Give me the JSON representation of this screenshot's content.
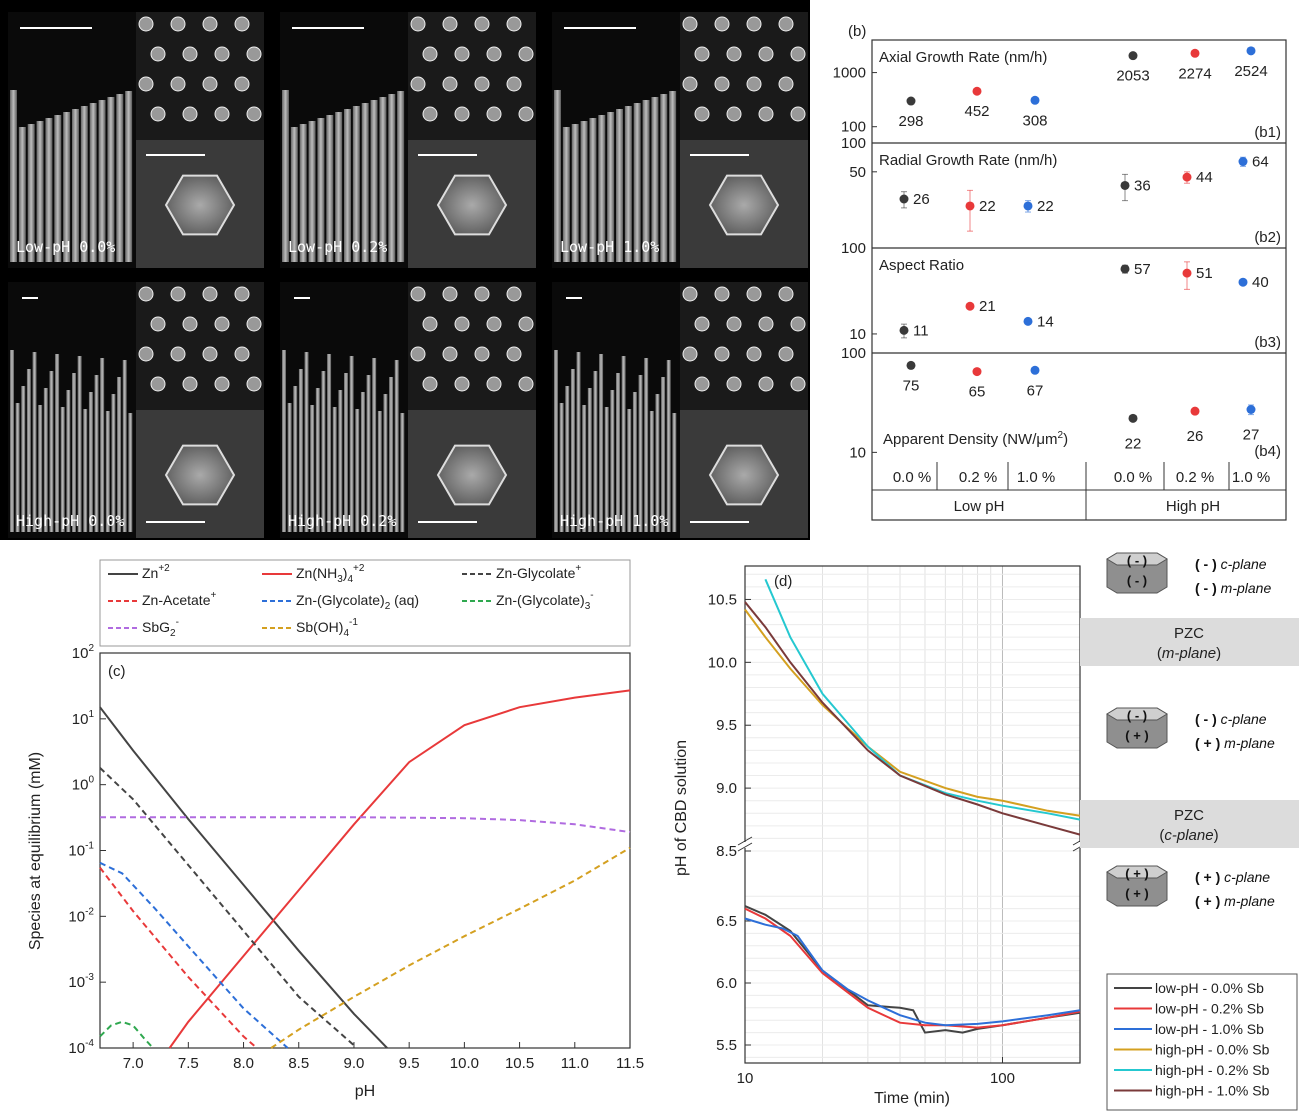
{
  "sem": {
    "panels": [
      "Low-pH 0.0%",
      "Low-pH 0.2%",
      "Low-pH 1.0%",
      "High-pH 0.0%",
      "High-pH 0.2%",
      "High-pH 1.0%"
    ]
  },
  "chart_data": [
    {
      "panel": "b",
      "type": "scatter",
      "panel_label": "(b)",
      "categories": [
        "0.0 %",
        "0.2 %",
        "1.0 %",
        "0.0 %",
        "0.2 %",
        "1.0 %"
      ],
      "groups": [
        "Low pH",
        "High pH"
      ],
      "series_colors": [
        "#3a3a3a",
        "#e8393a",
        "#2d6fd8",
        "#3a3a3a",
        "#e8393a",
        "#2d6fd8"
      ],
      "log_scale": true,
      "subplots": [
        {
          "title": "Axial Growth Rate (nm/h)",
          "tag": "(b1)",
          "ylim": [
            50,
            4000
          ],
          "ticks": [
            100,
            1000
          ],
          "values": [
            298,
            452,
            308,
            2053,
            2274,
            2524
          ],
          "labels": [
            "298",
            "452",
            "308",
            "2053",
            "2274",
            "2524"
          ],
          "errors": [
            0,
            0,
            0,
            0,
            0,
            0
          ]
        },
        {
          "title": "Radial Growth Rate (nm/h)",
          "tag": "(b2)",
          "ylim": [
            8,
            100
          ],
          "ticks": [
            50,
            100
          ],
          "values": [
            26,
            22,
            22,
            36,
            44,
            64
          ],
          "labels": [
            "26",
            "22",
            "22",
            "36",
            "44",
            "64"
          ],
          "errors": [
            5,
            10,
            3,
            11,
            6,
            7
          ]
        },
        {
          "title": "Aspect Ratio",
          "tag": "(b3)",
          "ylim": [
            6,
            100
          ],
          "ticks": [
            10,
            100
          ],
          "values": [
            11,
            21,
            14,
            57,
            51,
            40
          ],
          "labels": [
            "11",
            "21",
            "14",
            "57",
            "51",
            "40"
          ],
          "errors": [
            2,
            0,
            0,
            6,
            18,
            0
          ]
        },
        {
          "title": "Apparent Density (NW/μm²)",
          "tag": "(b4)",
          "ylim": [
            8,
            100
          ],
          "ticks": [
            10,
            100
          ],
          "values": [
            75,
            65,
            67,
            22,
            26,
            27
          ],
          "labels": [
            "75",
            "65",
            "67",
            "22",
            "26",
            "27"
          ],
          "errors": [
            0,
            0,
            0,
            0,
            0,
            3
          ]
        }
      ]
    },
    {
      "panel": "c",
      "type": "line",
      "panel_label": "(c)",
      "xlabel": "pH",
      "ylabel": "Species at equilibrium (mM)",
      "xlim": [
        6.7,
        11.5
      ],
      "ylim": [
        0.0001,
        100
      ],
      "y_log": true,
      "x_ticks": [
        "7.0",
        "7.5",
        "8.0",
        "8.5",
        "9.0",
        "9.5",
        "10.0",
        "10.5",
        "11.0",
        "11.5"
      ],
      "y_ticks": [
        "10-4",
        "10-3",
        "10-2",
        "10-1",
        "100",
        "101",
        "102"
      ],
      "legend": [
        {
          "name": "Zn+2",
          "base": "Zn",
          "sup": "+2",
          "color": "#444444",
          "dash": false
        },
        {
          "name": "Zn(NH3)4+2",
          "base": "Zn(NH",
          "sub1": "3",
          "mid": ")",
          "sub2": "4",
          "sup": "+2",
          "color": "#e8393a",
          "dash": false
        },
        {
          "name": "Zn-Glycolate+",
          "base": "Zn-Glycolate",
          "sup": "+",
          "color": "#444444",
          "dash": true
        },
        {
          "name": "Zn-Acetate+",
          "base": "Zn-Acetate",
          "sup": "+",
          "color": "#e8393a",
          "dash": true
        },
        {
          "name": "Zn-(Glycolate)2 (aq)",
          "base": "Zn-(Glycolate)",
          "sub1": "2",
          "mid": " (aq)",
          "color": "#2d6fd8",
          "dash": true
        },
        {
          "name": "Zn-(Glycolate)3-",
          "base": "Zn-(Glycolate)",
          "sub1": "3",
          "sup": "-",
          "color": "#2fa84f",
          "dash": true
        },
        {
          "name": "SbG2-",
          "base": "SbG",
          "sub1": "2",
          "sup": "-",
          "color": "#b06be0",
          "dash": true
        },
        {
          "name": "Sb(OH)4-1",
          "base": "Sb(OH)",
          "sub1": "4",
          "sup": "-1",
          "color": "#d4a020",
          "dash": true
        }
      ],
      "series": [
        {
          "name": "Zn+2",
          "x": [
            6.7,
            7.0,
            7.5,
            8.0,
            8.5,
            9.0,
            9.3
          ],
          "y": [
            15,
            3.3,
            0.3,
            0.03,
            0.003,
            0.00033,
            0.0001
          ]
        },
        {
          "name": "Zn(NH3)4+2",
          "x": [
            7.33,
            7.5,
            8.0,
            8.5,
            9.0,
            9.5,
            10.0,
            10.5,
            11.0,
            11.5
          ],
          "y": [
            0.0001,
            0.00025,
            0.0025,
            0.025,
            0.25,
            2.2,
            8,
            15,
            21,
            27
          ]
        },
        {
          "name": "Zn-Glycolate+",
          "x": [
            6.7,
            7.0,
            7.5,
            8.0,
            8.5,
            9.0,
            9.0
          ],
          "y": [
            1.8,
            0.6,
            0.06,
            0.006,
            0.0006,
            0.00011,
            0.0001
          ]
        },
        {
          "name": "Zn-Acetate+",
          "x": [
            6.7,
            7.0,
            7.5,
            8.0,
            8.12
          ],
          "y": [
            0.055,
            0.012,
            0.0012,
            0.00015,
            0.0001
          ]
        },
        {
          "name": "Zn-(Glycolate)2 (aq)",
          "x": [
            6.7,
            6.9,
            7.2,
            7.5,
            8.0,
            8.4
          ],
          "y": [
            0.065,
            0.045,
            0.013,
            0.0035,
            0.0004,
            0.0001
          ]
        },
        {
          "name": "Zn-(Glycolate)3-",
          "x": [
            6.7,
            6.8,
            6.9,
            7.0,
            7.1,
            7.18
          ],
          "y": [
            0.00015,
            0.00022,
            0.00025,
            0.00022,
            0.00014,
            0.0001
          ]
        },
        {
          "name": "SbG2-",
          "x": [
            6.7,
            8.0,
            9.0,
            10.0,
            10.5,
            11.0,
            11.5
          ],
          "y": [
            0.32,
            0.32,
            0.32,
            0.31,
            0.29,
            0.25,
            0.19
          ]
        },
        {
          "name": "Sb(OH)4-1",
          "x": [
            8.25,
            8.5,
            9.0,
            9.5,
            10.0,
            10.5,
            11.0,
            11.5
          ],
          "y": [
            0.0001,
            0.00019,
            0.0006,
            0.0018,
            0.005,
            0.013,
            0.035,
            0.11
          ]
        }
      ]
    },
    {
      "panel": "d",
      "type": "line",
      "panel_label": "(d)",
      "xlabel": "Time (min)",
      "ylabel": "pH of CBD solution",
      "x_log": true,
      "xlim": [
        10,
        200
      ],
      "x_ticks": [
        "10",
        "100"
      ],
      "y_ticks_upper": [
        "8.5",
        "9.0",
        "9.5",
        "10.0",
        "10.5"
      ],
      "y_ticks_lower": [
        "5.5",
        "6.0",
        "6.5"
      ],
      "upper_ylim": [
        8.5,
        10.75
      ],
      "lower_ylim": [
        5.4,
        6.75
      ],
      "series": [
        {
          "name": "low-pH - 0.0% Sb",
          "color": "#444444",
          "x": [
            10,
            12,
            15,
            20,
            30,
            40,
            45,
            50,
            60,
            70,
            80,
            100,
            150,
            200
          ],
          "y": [
            6.62,
            6.55,
            6.42,
            6.1,
            5.82,
            5.8,
            5.78,
            5.6,
            5.62,
            5.6,
            5.63,
            5.66,
            5.72,
            5.76
          ]
        },
        {
          "name": "low-pH - 0.2% Sb",
          "color": "#e8393a",
          "x": [
            10,
            12,
            15,
            20,
            30,
            40,
            50,
            60,
            80,
            100,
            150,
            200
          ],
          "y": [
            6.6,
            6.52,
            6.38,
            6.08,
            5.8,
            5.68,
            5.66,
            5.66,
            5.64,
            5.66,
            5.72,
            5.77
          ]
        },
        {
          "name": "low-pH - 1.0% Sb",
          "color": "#2d6fd8",
          "x": [
            10,
            12,
            14,
            16,
            20,
            25,
            30,
            40,
            50,
            60,
            80,
            100,
            150,
            200
          ],
          "y": [
            6.52,
            6.47,
            6.44,
            6.38,
            6.1,
            5.95,
            5.86,
            5.74,
            5.68,
            5.66,
            5.67,
            5.69,
            5.74,
            5.78
          ]
        },
        {
          "name": "high-pH - 0.0% Sb",
          "color": "#d4a020",
          "x": [
            10,
            12,
            15,
            20,
            30,
            40,
            60,
            80,
            100,
            150,
            200
          ],
          "y": [
            10.42,
            10.2,
            9.95,
            9.66,
            9.33,
            9.13,
            9.0,
            8.93,
            8.9,
            8.82,
            8.78
          ]
        },
        {
          "name": "high-pH - 0.2% Sb",
          "color": "#25c8d0",
          "x": [
            12,
            15,
            20,
            30,
            40,
            60,
            80,
            100,
            150,
            200
          ],
          "y": [
            10.66,
            10.2,
            9.75,
            9.33,
            9.1,
            8.96,
            8.9,
            8.86,
            8.8,
            8.75
          ]
        },
        {
          "name": "high-pH - 1.0% Sb",
          "color": "#7a3a3a",
          "x": [
            10,
            12,
            15,
            20,
            30,
            40,
            60,
            80,
            100,
            150,
            200
          ],
          "y": [
            10.48,
            10.28,
            10.0,
            9.68,
            9.3,
            9.1,
            8.95,
            8.87,
            8.8,
            8.7,
            8.63
          ]
        }
      ],
      "schematic": {
        "top": {
          "c_sign": "( - )",
          "m_sign": "( - )",
          "c_label": "c-plane",
          "m_label": "m-plane"
        },
        "pzc_m": {
          "title": "PZC",
          "sub": "m-plane"
        },
        "middle": {
          "c_sign": "( - )",
          "m_sign": "( + )",
          "c_label": "c-plane",
          "m_label": "m-plane"
        },
        "pzc_c": {
          "title": "PZC",
          "sub": "c-plane"
        },
        "bottom": {
          "c_sign": "( + )",
          "m_sign": "( + )",
          "c_label": "c-plane",
          "m_label": "m-plane"
        }
      }
    }
  ]
}
